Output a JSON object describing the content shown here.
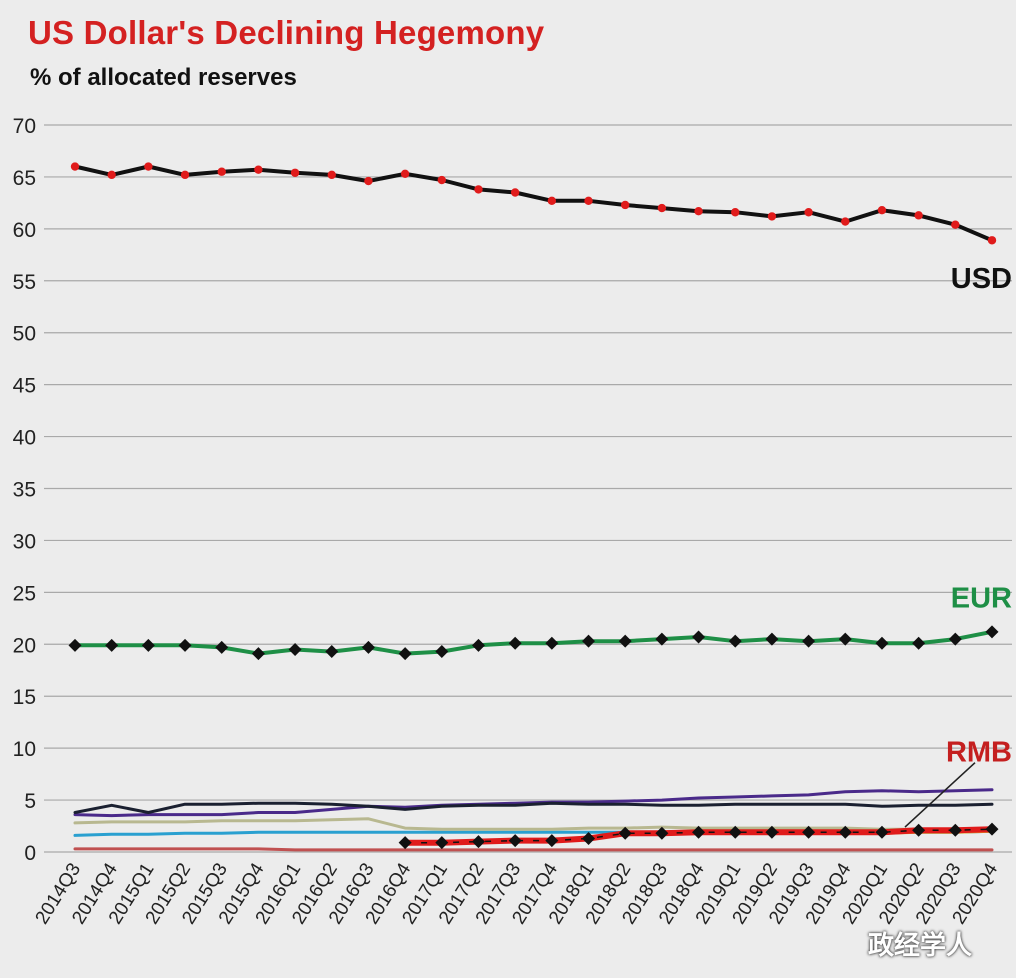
{
  "title": "US Dollar's  Declining Hegemony",
  "subtitle": "% of allocated reserves",
  "watermark": "政经学人",
  "chart_data": {
    "type": "line",
    "title": "US Dollar's  Declining Hegemony",
    "ylabel": "% of allocated reserves",
    "ylim": [
      0,
      70
    ],
    "yticks": [
      0,
      5,
      10,
      15,
      20,
      25,
      30,
      35,
      40,
      45,
      50,
      55,
      60,
      65,
      70
    ],
    "grid": true,
    "categories": [
      "2014Q3",
      "2014Q4",
      "2015Q1",
      "2015Q2",
      "2015Q3",
      "2015Q4",
      "2016Q1",
      "2016Q2",
      "2016Q3",
      "2016Q4",
      "2017Q1",
      "2017Q2",
      "2017Q3",
      "2017Q4",
      "2018Q1",
      "2018Q2",
      "2018Q3",
      "2018Q4",
      "2019Q1",
      "2019Q2",
      "2019Q3",
      "2019Q4",
      "2020Q1",
      "2020Q2",
      "2020Q3",
      "2020Q4"
    ],
    "series": [
      {
        "name": "USD",
        "color": "#111111",
        "marker_color": "#e01b1b",
        "marker": "dot",
        "values": [
          66.0,
          65.2,
          66.0,
          65.2,
          65.5,
          65.7,
          65.4,
          65.2,
          64.6,
          65.3,
          64.7,
          63.8,
          63.5,
          62.7,
          62.7,
          62.3,
          62.0,
          61.7,
          61.6,
          61.2,
          61.6,
          60.7,
          61.8,
          61.3,
          60.4,
          58.9
        ]
      },
      {
        "name": "EUR",
        "color": "#1e8f46",
        "marker_color": "#111111",
        "marker": "diamond",
        "values": [
          19.9,
          19.9,
          19.9,
          19.9,
          19.7,
          19.1,
          19.5,
          19.3,
          19.7,
          19.1,
          19.3,
          19.9,
          20.1,
          20.1,
          20.3,
          20.3,
          20.5,
          20.7,
          20.3,
          20.5,
          20.3,
          20.5,
          20.1,
          20.1,
          20.5,
          21.2
        ]
      },
      {
        "name": "RMB",
        "color": "#e01b1b",
        "marker_color": "#111111",
        "marker": "diamond",
        "start_index": 9,
        "values": [
          null,
          null,
          null,
          null,
          null,
          null,
          null,
          null,
          null,
          0.9,
          0.9,
          1.0,
          1.1,
          1.1,
          1.3,
          1.8,
          1.8,
          1.9,
          1.9,
          1.9,
          1.9,
          1.9,
          1.9,
          2.1,
          2.1,
          2.2
        ]
      },
      {
        "name": "",
        "color": "#4a2a8a",
        "values": [
          3.6,
          3.5,
          3.6,
          3.6,
          3.6,
          3.8,
          3.8,
          4.1,
          4.4,
          4.3,
          4.5,
          4.6,
          4.7,
          4.8,
          4.8,
          4.9,
          5.0,
          5.2,
          5.3,
          5.4,
          5.5,
          5.8,
          5.9,
          5.8,
          5.9,
          6.0
        ]
      },
      {
        "name": "",
        "color": "#1a2030",
        "values": [
          3.8,
          4.5,
          3.8,
          4.6,
          4.6,
          4.7,
          4.7,
          4.6,
          4.4,
          4.1,
          4.4,
          4.5,
          4.5,
          4.7,
          4.6,
          4.6,
          4.5,
          4.5,
          4.6,
          4.6,
          4.6,
          4.6,
          4.4,
          4.5,
          4.5,
          4.6
        ]
      },
      {
        "name": "",
        "color": "#2aa0d0",
        "values": [
          1.6,
          1.7,
          1.7,
          1.8,
          1.8,
          1.9,
          1.9,
          1.9,
          1.9,
          1.9,
          1.9,
          1.9,
          1.9,
          1.9,
          1.9,
          1.9,
          1.9,
          1.9,
          1.9,
          1.9,
          1.9,
          1.9,
          1.9,
          1.9,
          1.9,
          2.0
        ]
      },
      {
        "name": "",
        "color": "#b8b890",
        "values": [
          2.8,
          2.9,
          2.9,
          2.9,
          3.0,
          3.0,
          3.0,
          3.1,
          3.2,
          2.3,
          2.2,
          2.2,
          2.2,
          2.2,
          2.3,
          2.3,
          2.4,
          2.3,
          2.3,
          2.3,
          2.3,
          2.3,
          2.2,
          2.2,
          2.2,
          2.2
        ]
      },
      {
        "name": "",
        "color": "#e4a020",
        "values": [
          null,
          null,
          null,
          null,
          null,
          null,
          null,
          null,
          null,
          null,
          null,
          null,
          null,
          null,
          null,
          null,
          null,
          1.9,
          1.9,
          1.9,
          1.9,
          1.9,
          1.8,
          1.9,
          1.9,
          2.0
        ]
      },
      {
        "name": "",
        "color": "#c05050",
        "values": [
          0.3,
          0.3,
          0.3,
          0.3,
          0.3,
          0.3,
          0.2,
          0.2,
          0.2,
          0.2,
          0.2,
          0.2,
          0.2,
          0.2,
          0.2,
          0.2,
          0.2,
          0.2,
          0.2,
          0.2,
          0.2,
          0.2,
          0.2,
          0.2,
          0.2,
          0.2
        ]
      }
    ]
  }
}
